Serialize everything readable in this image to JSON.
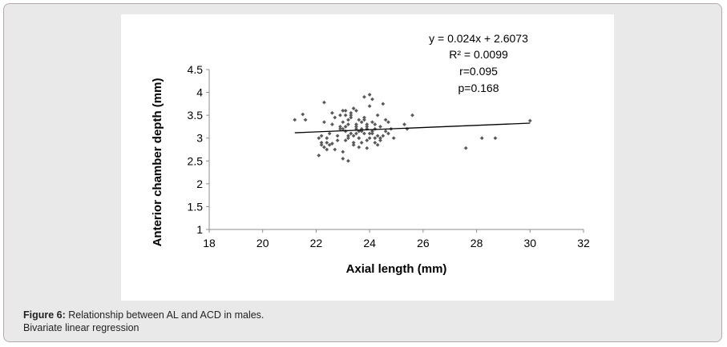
{
  "caption": {
    "label": "Figure 6:",
    "text": " Relationship between AL and ACD in males.",
    "line2": "Bivariate linear regression"
  },
  "chart_data": {
    "type": "scatter",
    "title": "",
    "xlabel": "Axial length (mm)",
    "ylabel": "Anterior chamber depth (mm)",
    "xlim": [
      18,
      32
    ],
    "ylim": [
      1,
      4.5
    ],
    "x_ticks": [
      18,
      20,
      22,
      24,
      26,
      28,
      30,
      32
    ],
    "y_ticks": [
      1,
      1.5,
      2,
      2.5,
      3,
      3.5,
      4,
      4.5
    ],
    "x_tick_labels": [
      "18",
      "20",
      "22",
      "24",
      "26",
      "28",
      "30",
      "32"
    ],
    "y_tick_labels": [
      "1",
      "1.5",
      "2",
      "2.5",
      "3",
      "3.5",
      "4",
      "4.5"
    ],
    "grid": false,
    "legend": false,
    "marker_color": "#5a5a5a",
    "trendline": {
      "slope": 0.024,
      "intercept": 2.6073,
      "x_range": [
        21.2,
        30
      ],
      "color": "#000000"
    },
    "annotations": [
      "y = 0.024x + 2.6073",
      "R² = 0.0099",
      "r=0.095",
      "p=0.168"
    ],
    "x": [
      21.2,
      21.5,
      21.6,
      22.1,
      22.2,
      22.1,
      22.3,
      22.4,
      22.5,
      22.6,
      22.4,
      22.7,
      22.6,
      22.8,
      22.3,
      22.9,
      23.0,
      22.9,
      23.1,
      23.0,
      23.2,
      23.1,
      23.3,
      23.2,
      23.4,
      23.3,
      23.5,
      23.4,
      23.6,
      23.5,
      23.7,
      23.6,
      23.8,
      23.7,
      23.9,
      23.8,
      24.0,
      23.9,
      24.1,
      24.0,
      24.2,
      24.1,
      24.3,
      24.2,
      24.4,
      24.5,
      24.6,
      24.7,
      24.8,
      24.9,
      23.0,
      23.2,
      23.4,
      23.1,
      23.3,
      23.6,
      23.5,
      23.8,
      24.0,
      23.9,
      24.2,
      24.4,
      22.5,
      22.8,
      23.0,
      23.2,
      23.5,
      23.7,
      24.1,
      24.3,
      24.5,
      25.3,
      25.6,
      25.4,
      22.2,
      22.7,
      23.1,
      23.3,
      23.6,
      23.9,
      24.2,
      24.6,
      22.9,
      23.4,
      23.8,
      24.0,
      24.3,
      22.6,
      22.3,
      23.2,
      23.5,
      23.7,
      24.1,
      22.4,
      23.0,
      23.3,
      23.9,
      24.4,
      24.7,
      22.2,
      23.1,
      23.6,
      27.6,
      28.2,
      28.7,
      30.0
    ],
    "y": [
      3.4,
      3.52,
      3.4,
      2.62,
      2.85,
      3.0,
      3.78,
      2.9,
      3.1,
      3.3,
      2.75,
      3.45,
      2.88,
      3.05,
      3.35,
      3.5,
      2.7,
      3.2,
      3.6,
      2.55,
      3.3,
      2.95,
      3.45,
      3.05,
      2.85,
      3.55,
      3.1,
      3.65,
      2.8,
      3.25,
      3.35,
      3.0,
      3.9,
      3.15,
      2.95,
      3.45,
      3.7,
      3.2,
      3.85,
      3.0,
      3.3,
      3.15,
      3.5,
      2.9,
      3.25,
      3.05,
      3.4,
      3.1,
      3.2,
      3.0,
      3.2,
      3.0,
      2.9,
      3.5,
      3.1,
      3.0,
      3.3,
      3.4,
      3.1,
      3.3,
      3.2,
      3.0,
      2.85,
      2.95,
      3.35,
      3.4,
      3.6,
      3.2,
      3.1,
      2.85,
      3.75,
      3.3,
      3.5,
      3.2,
      2.9,
      2.75,
      3.15,
      3.5,
      3.4,
      3.25,
      3.0,
      3.15,
      3.25,
      3.05,
      3.1,
      3.95,
      3.05,
      3.55,
      2.8,
      2.5,
      3.2,
      2.9,
      3.35,
      3.0,
      3.6,
      3.1,
      2.78,
      2.95,
      3.35,
      3.05,
      3.25,
      3.15,
      2.78,
      3.0,
      3.0,
      3.38
    ]
  }
}
